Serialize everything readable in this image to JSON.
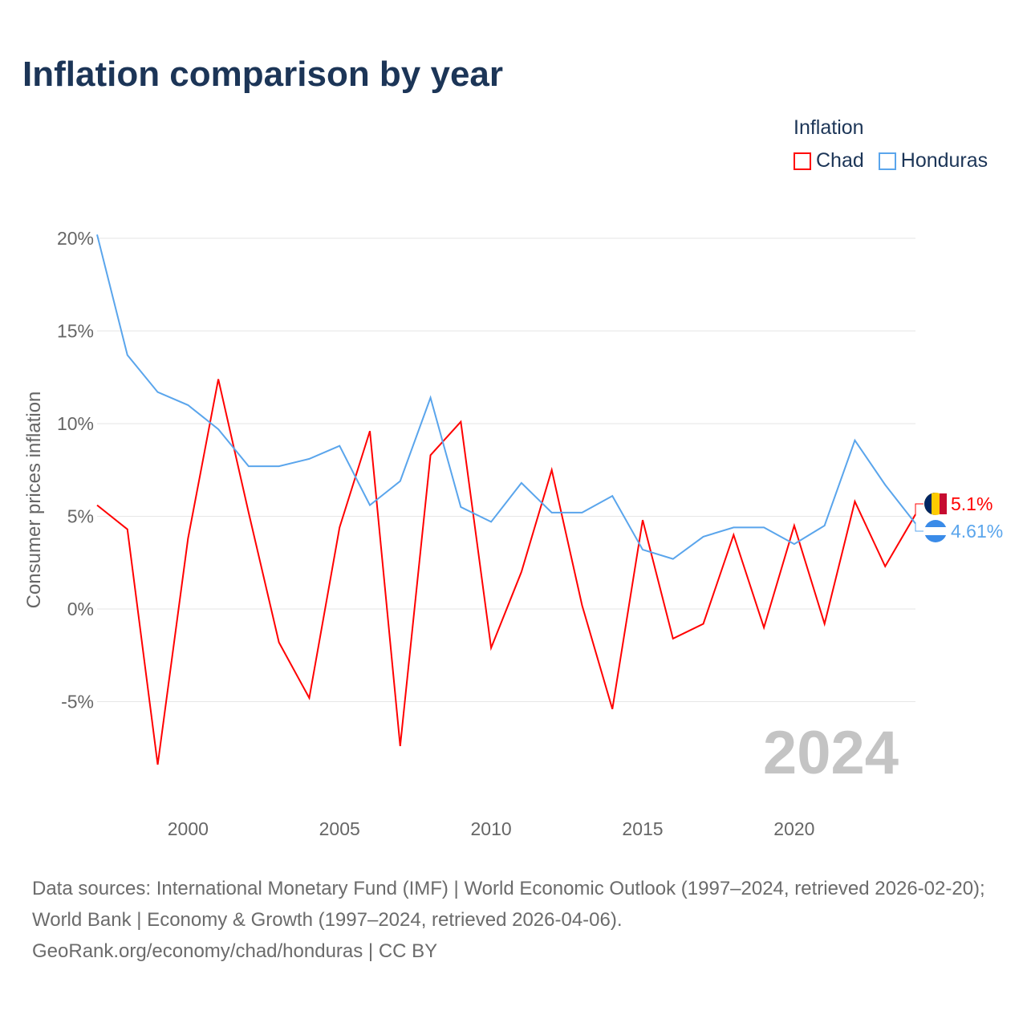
{
  "title": "Inflation comparison by year",
  "legend": {
    "title": "Inflation",
    "items": [
      {
        "label": "Chad",
        "color": "#ff0000"
      },
      {
        "label": "Honduras",
        "color": "#5aa5ec"
      }
    ]
  },
  "source": {
    "line1": "Data sources: International Monetary Fund (IMF) | World Economic Outlook (1997–2024, retrieved 2026-02-20); World Bank | Economy & Growth (1997–2024, retrieved 2026-04-06).",
    "line2": "GeoRank.org/economy/chad/honduras | CC BY"
  },
  "chart_data": {
    "type": "line",
    "title": "Inflation comparison by year",
    "xlabel": "",
    "ylabel": "Consumer prices inflation",
    "year_label": "2024",
    "x": [
      1997,
      1998,
      1999,
      2000,
      2001,
      2002,
      2003,
      2004,
      2005,
      2006,
      2007,
      2008,
      2009,
      2010,
      2011,
      2012,
      2013,
      2014,
      2015,
      2016,
      2017,
      2018,
      2019,
      2020,
      2021,
      2022,
      2023,
      2024
    ],
    "xlim": [
      1997,
      2024
    ],
    "ylim": [
      -10,
      20.5
    ],
    "xticks": [
      2000,
      2005,
      2010,
      2015,
      2020
    ],
    "yticks": [
      -5,
      0,
      5,
      10,
      15,
      20
    ],
    "ytick_labels": [
      "-5%",
      "0%",
      "5%",
      "10%",
      "15%",
      "20%"
    ],
    "grid": true,
    "legend_position": "top-right",
    "series": [
      {
        "name": "Chad",
        "color": "#ff0000",
        "end_label": "5.1%",
        "values": [
          5.6,
          4.3,
          -8.4,
          3.8,
          12.4,
          5.2,
          -1.8,
          -4.8,
          4.4,
          9.6,
          -7.4,
          8.3,
          10.1,
          -2.1,
          2.0,
          7.5,
          0.2,
          -5.4,
          4.8,
          -1.6,
          -0.8,
          4.0,
          -1.0,
          4.5,
          -0.8,
          5.8,
          2.3,
          5.1
        ]
      },
      {
        "name": "Honduras",
        "color": "#5aa5ec",
        "end_label": "4.61%",
        "values": [
          20.2,
          13.7,
          11.7,
          11.0,
          9.7,
          7.7,
          7.7,
          8.1,
          8.8,
          5.6,
          6.9,
          11.4,
          5.5,
          4.7,
          6.8,
          5.2,
          5.2,
          6.1,
          3.2,
          2.7,
          3.9,
          4.4,
          4.4,
          3.5,
          4.5,
          9.1,
          6.7,
          4.61
        ]
      }
    ]
  }
}
